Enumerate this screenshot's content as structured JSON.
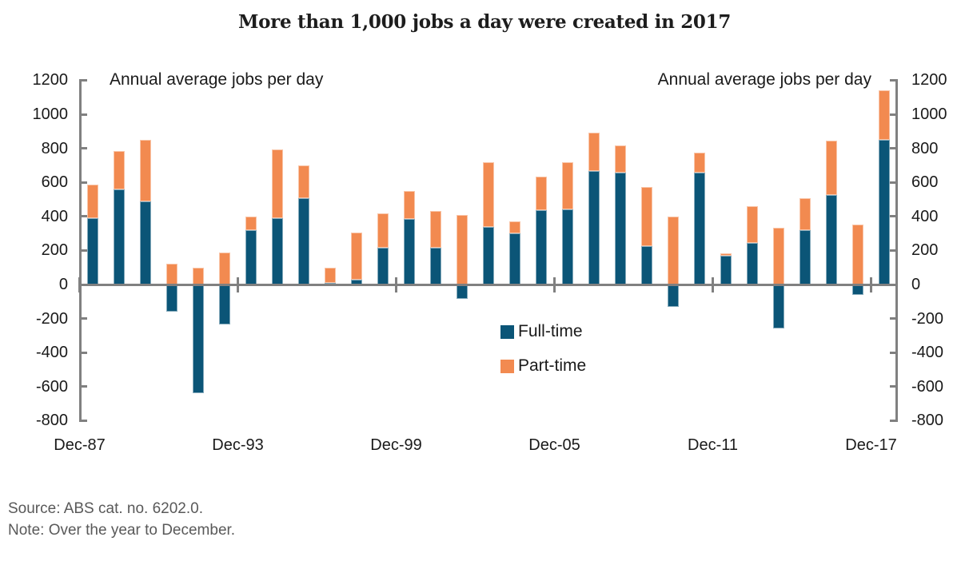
{
  "title": "More than 1,000 jobs a day were created in 2017",
  "axis_annotation_left": "Annual average jobs per day",
  "axis_annotation_right": "Annual average jobs per day",
  "legend": {
    "full_time_label": "Full-time",
    "part_time_label": "Part-time"
  },
  "footer": {
    "source": "Source: ABS cat. no. 6202.0.",
    "note": "Note: Over the year to December."
  },
  "colors": {
    "full_time": "#0b5577",
    "part_time": "#F28A50",
    "axis": "#808080",
    "text": "#1a1a1a",
    "muted_text": "#595959"
  },
  "chart_data": {
    "type": "bar",
    "stacked": true,
    "title": "More than 1,000 jobs a day were created in 2017",
    "ylabel": "Annual average jobs per day",
    "ylim": [
      -800,
      1200
    ],
    "y_tick_step": 200,
    "y_ticks": [
      1200,
      1000,
      800,
      600,
      400,
      200,
      0,
      -200,
      -400,
      -600,
      -800
    ],
    "grid": false,
    "legend_position": "center-right",
    "categories": [
      "Dec-87",
      "Dec-88",
      "Dec-89",
      "Dec-90",
      "Dec-91",
      "Dec-92",
      "Dec-93",
      "Dec-94",
      "Dec-95",
      "Dec-96",
      "Dec-97",
      "Dec-98",
      "Dec-99",
      "Dec-00",
      "Dec-01",
      "Dec-02",
      "Dec-03",
      "Dec-04",
      "Dec-05",
      "Dec-06",
      "Dec-07",
      "Dec-08",
      "Dec-09",
      "Dec-10",
      "Dec-11",
      "Dec-12",
      "Dec-13",
      "Dec-14",
      "Dec-15",
      "Dec-16",
      "Dec-17"
    ],
    "x_tick_labels": [
      "Dec-87",
      "Dec-93",
      "Dec-99",
      "Dec-05",
      "Dec-11",
      "Dec-17"
    ],
    "x_tick_every": 6,
    "series": [
      {
        "name": "Full-time",
        "values": [
          390,
          560,
          490,
          -160,
          -640,
          -235,
          320,
          390,
          505,
          10,
          30,
          215,
          385,
          215,
          -85,
          340,
          300,
          435,
          440,
          665,
          655,
          225,
          -130,
          655,
          170,
          245,
          -260,
          320,
          525,
          -60,
          850
        ]
      },
      {
        "name": "Part-time",
        "values": [
          195,
          225,
          360,
          120,
          100,
          190,
          80,
          405,
          195,
          90,
          275,
          205,
          165,
          215,
          410,
          380,
          70,
          200,
          280,
          225,
          160,
          350,
          400,
          120,
          15,
          215,
          335,
          185,
          320,
          350,
          290
        ]
      }
    ]
  }
}
